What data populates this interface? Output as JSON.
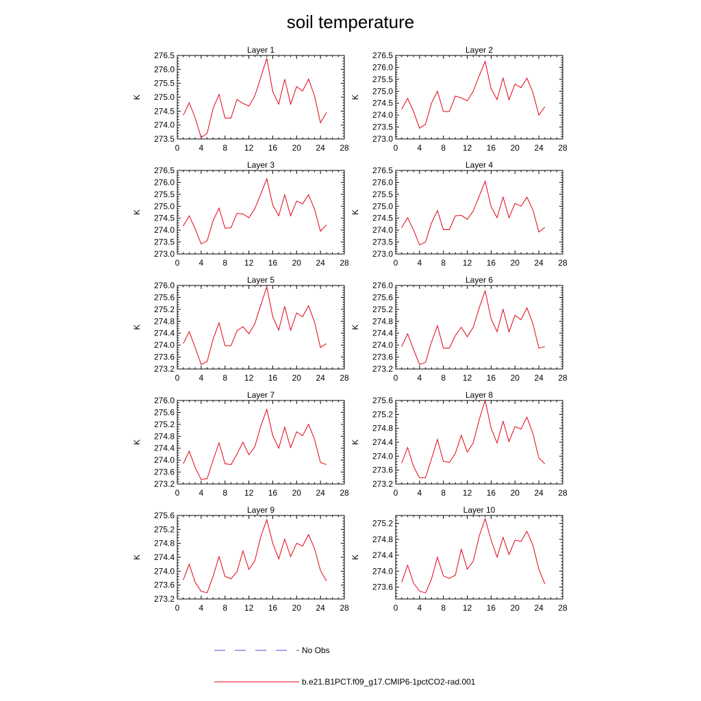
{
  "title": "soil temperature",
  "legend": {
    "items": [
      {
        "label": "No Obs",
        "color": "#4a4acd",
        "style": "dashed"
      },
      {
        "label": "b.e21.B1PCT.f09_g17.CMIP6-1pctCO2-rad.001",
        "color": "#e0000f",
        "style": "solid"
      }
    ]
  },
  "chart_data": [
    {
      "type": "line",
      "title": "Layer 1",
      "ylabel": "K",
      "xlim": [
        0,
        28
      ],
      "ylim": [
        273.5,
        276.5
      ],
      "xticks": [
        0,
        4,
        8,
        12,
        16,
        20,
        24,
        28
      ],
      "yticks": [
        273.5,
        274.0,
        274.5,
        275.0,
        275.5,
        276.0,
        276.5
      ],
      "series": [
        {
          "x": [
            1,
            2,
            3,
            4,
            5,
            6,
            7,
            8,
            9,
            10,
            11,
            12,
            13,
            14,
            15,
            16,
            17,
            18,
            19,
            20,
            21,
            22,
            23,
            24,
            25
          ],
          "values": [
            274.35,
            274.8,
            274.25,
            273.55,
            273.7,
            274.6,
            275.1,
            274.25,
            274.25,
            274.92,
            274.78,
            274.68,
            275.05,
            275.72,
            276.4,
            275.2,
            274.75,
            275.65,
            274.75,
            275.38,
            275.22,
            275.65,
            275.05,
            274.08,
            274.45
          ],
          "color": "#e0000f"
        }
      ]
    },
    {
      "type": "line",
      "title": "Layer 2",
      "ylabel": "K",
      "xlim": [
        0,
        28
      ],
      "ylim": [
        273.0,
        276.5
      ],
      "xticks": [
        0,
        4,
        8,
        12,
        16,
        20,
        24,
        28
      ],
      "yticks": [
        273.0,
        273.5,
        274.0,
        274.5,
        275.0,
        275.5,
        276.0,
        276.5
      ],
      "series": [
        {
          "x": [
            1,
            2,
            3,
            4,
            5,
            6,
            7,
            8,
            9,
            10,
            11,
            12,
            13,
            14,
            15,
            16,
            17,
            18,
            19,
            20,
            21,
            22,
            23,
            24,
            25
          ],
          "values": [
            274.25,
            274.7,
            274.15,
            273.45,
            273.62,
            274.5,
            275.0,
            274.15,
            274.15,
            274.8,
            274.72,
            274.6,
            275.0,
            275.65,
            276.25,
            275.1,
            274.65,
            275.55,
            274.65,
            275.3,
            275.15,
            275.55,
            274.95,
            274.0,
            274.35
          ],
          "color": "#e0000f"
        }
      ]
    },
    {
      "type": "line",
      "title": "Layer 3",
      "ylabel": "K",
      "xlim": [
        0,
        28
      ],
      "ylim": [
        273.0,
        276.5
      ],
      "xticks": [
        0,
        4,
        8,
        12,
        16,
        20,
        24,
        28
      ],
      "yticks": [
        273.0,
        273.5,
        274.0,
        274.5,
        275.0,
        275.5,
        276.0,
        276.5
      ],
      "series": [
        {
          "x": [
            1,
            2,
            3,
            4,
            5,
            6,
            7,
            8,
            9,
            10,
            11,
            12,
            13,
            14,
            15,
            16,
            17,
            18,
            19,
            20,
            21,
            22,
            23,
            24,
            25
          ],
          "values": [
            274.18,
            274.6,
            274.05,
            273.42,
            273.55,
            274.4,
            274.92,
            274.08,
            274.1,
            274.7,
            274.68,
            274.52,
            274.9,
            275.52,
            276.15,
            275.05,
            274.6,
            275.48,
            274.6,
            275.22,
            275.1,
            275.48,
            274.88,
            273.95,
            274.22
          ],
          "color": "#e0000f"
        }
      ]
    },
    {
      "type": "line",
      "title": "Layer 4",
      "ylabel": "K",
      "xlim": [
        0,
        28
      ],
      "ylim": [
        273.0,
        276.5
      ],
      "xticks": [
        0,
        4,
        8,
        12,
        16,
        20,
        24,
        28
      ],
      "yticks": [
        273.0,
        273.5,
        274.0,
        274.5,
        275.0,
        275.5,
        276.0,
        276.5
      ],
      "series": [
        {
          "x": [
            1,
            2,
            3,
            4,
            5,
            6,
            7,
            8,
            9,
            10,
            11,
            12,
            13,
            14,
            15,
            16,
            17,
            18,
            19,
            20,
            21,
            22,
            23,
            24,
            25
          ],
          "values": [
            274.1,
            274.52,
            274.0,
            273.38,
            273.5,
            274.3,
            274.82,
            274.02,
            274.02,
            274.6,
            274.62,
            274.45,
            274.8,
            275.42,
            276.05,
            274.98,
            274.52,
            275.38,
            274.52,
            275.12,
            275.0,
            275.38,
            274.85,
            273.92,
            274.12
          ],
          "color": "#e0000f"
        }
      ]
    },
    {
      "type": "line",
      "title": "Layer 5",
      "ylabel": "K",
      "xlim": [
        0,
        28
      ],
      "ylim": [
        273.2,
        276.0
      ],
      "xticks": [
        0,
        4,
        8,
        12,
        16,
        20,
        24,
        28
      ],
      "yticks": [
        273.2,
        273.6,
        274.0,
        274.4,
        274.8,
        275.2,
        275.6,
        276.0
      ],
      "series": [
        {
          "x": [
            1,
            2,
            3,
            4,
            5,
            6,
            7,
            8,
            9,
            10,
            11,
            12,
            13,
            14,
            15,
            16,
            17,
            18,
            19,
            20,
            21,
            22,
            23,
            24,
            25
          ],
          "values": [
            274.05,
            274.45,
            273.92,
            273.35,
            273.45,
            274.2,
            274.75,
            273.98,
            273.98,
            274.48,
            274.62,
            274.38,
            274.72,
            275.35,
            275.95,
            274.95,
            274.5,
            275.3,
            274.5,
            275.08,
            274.95,
            275.32,
            274.78,
            273.92,
            274.05
          ],
          "color": "#e0000f"
        }
      ]
    },
    {
      "type": "line",
      "title": "Layer 6",
      "ylabel": "K",
      "xlim": [
        0,
        28
      ],
      "ylim": [
        273.2,
        276.0
      ],
      "xticks": [
        0,
        4,
        8,
        12,
        16,
        20,
        24,
        28
      ],
      "yticks": [
        273.2,
        273.6,
        274.0,
        274.4,
        274.8,
        275.2,
        275.6,
        276.0
      ],
      "series": [
        {
          "x": [
            1,
            2,
            3,
            4,
            5,
            6,
            7,
            8,
            9,
            10,
            11,
            12,
            13,
            14,
            15,
            16,
            17,
            18,
            19,
            20,
            21,
            22,
            23,
            24,
            25
          ],
          "values": [
            273.95,
            274.38,
            273.85,
            273.35,
            273.42,
            274.1,
            274.65,
            273.9,
            273.9,
            274.32,
            274.6,
            274.28,
            274.6,
            275.25,
            275.82,
            274.88,
            274.45,
            275.2,
            274.45,
            275.0,
            274.85,
            275.25,
            274.72,
            273.9,
            273.95
          ],
          "color": "#e0000f"
        }
      ]
    },
    {
      "type": "line",
      "title": "Layer 7",
      "ylabel": "K",
      "xlim": [
        0,
        28
      ],
      "ylim": [
        273.2,
        276.0
      ],
      "xticks": [
        0,
        4,
        8,
        12,
        16,
        20,
        24,
        28
      ],
      "yticks": [
        273.2,
        273.6,
        274.0,
        274.4,
        274.8,
        275.2,
        275.6,
        276.0
      ],
      "series": [
        {
          "x": [
            1,
            2,
            3,
            4,
            5,
            6,
            7,
            8,
            9,
            10,
            11,
            12,
            13,
            14,
            15,
            16,
            17,
            18,
            19,
            20,
            21,
            22,
            23,
            24,
            25
          ],
          "values": [
            273.88,
            274.3,
            273.75,
            273.35,
            273.38,
            274.0,
            274.58,
            273.88,
            273.85,
            274.2,
            274.6,
            274.18,
            274.45,
            275.15,
            275.7,
            274.82,
            274.4,
            275.1,
            274.42,
            274.95,
            274.82,
            275.2,
            274.7,
            273.92,
            273.85
          ],
          "color": "#e0000f"
        }
      ]
    },
    {
      "type": "line",
      "title": "Layer 8",
      "ylabel": "K",
      "xlim": [
        0,
        28
      ],
      "ylim": [
        273.2,
        275.6
      ],
      "xticks": [
        0,
        4,
        8,
        12,
        16,
        20,
        24,
        28
      ],
      "yticks": [
        273.2,
        273.6,
        274.0,
        274.4,
        274.8,
        275.2,
        275.6
      ],
      "series": [
        {
          "x": [
            1,
            2,
            3,
            4,
            5,
            6,
            7,
            8,
            9,
            10,
            11,
            12,
            13,
            14,
            15,
            16,
            17,
            18,
            19,
            20,
            21,
            22,
            23,
            24,
            25
          ],
          "values": [
            273.8,
            274.25,
            273.7,
            273.38,
            273.38,
            273.92,
            274.48,
            273.85,
            273.82,
            274.08,
            274.6,
            274.12,
            274.38,
            275.05,
            275.6,
            274.8,
            274.38,
            275.0,
            274.42,
            274.85,
            274.78,
            275.12,
            274.65,
            273.95,
            273.78
          ],
          "color": "#e0000f"
        }
      ]
    },
    {
      "type": "line",
      "title": "Layer 9",
      "ylabel": "K",
      "xlim": [
        0,
        28
      ],
      "ylim": [
        273.2,
        275.6
      ],
      "xticks": [
        0,
        4,
        8,
        12,
        16,
        20,
        24,
        28
      ],
      "yticks": [
        273.2,
        273.6,
        274.0,
        274.4,
        274.8,
        275.2,
        275.6
      ],
      "series": [
        {
          "x": [
            1,
            2,
            3,
            4,
            5,
            6,
            7,
            8,
            9,
            10,
            11,
            12,
            13,
            14,
            15,
            16,
            17,
            18,
            19,
            20,
            21,
            22,
            23,
            24,
            25
          ],
          "values": [
            273.75,
            274.2,
            273.68,
            273.42,
            273.38,
            273.85,
            274.42,
            273.85,
            273.78,
            273.98,
            274.58,
            274.05,
            274.3,
            275.0,
            275.48,
            274.8,
            274.35,
            274.92,
            274.42,
            274.8,
            274.72,
            275.05,
            274.65,
            274.02,
            273.72
          ],
          "color": "#e0000f"
        }
      ]
    },
    {
      "type": "line",
      "title": "Layer 10",
      "ylabel": "K",
      "xlim": [
        0,
        28
      ],
      "ylim": [
        273.3,
        275.4
      ],
      "xticks": [
        0,
        4,
        8,
        12,
        16,
        20,
        24,
        28
      ],
      "yticks": [
        273.6,
        274.0,
        274.4,
        274.8,
        275.2
      ],
      "series": [
        {
          "x": [
            1,
            2,
            3,
            4,
            5,
            6,
            7,
            8,
            9,
            10,
            11,
            12,
            13,
            14,
            15,
            16,
            17,
            18,
            19,
            20,
            21,
            22,
            23,
            24,
            25
          ],
          "values": [
            273.72,
            274.15,
            273.7,
            273.5,
            273.45,
            273.8,
            274.35,
            273.88,
            273.82,
            273.9,
            274.55,
            274.05,
            274.25,
            274.88,
            275.32,
            274.78,
            274.35,
            274.85,
            274.42,
            274.78,
            274.75,
            275.0,
            274.65,
            274.05,
            273.68
          ],
          "color": "#e0000f"
        }
      ]
    }
  ]
}
